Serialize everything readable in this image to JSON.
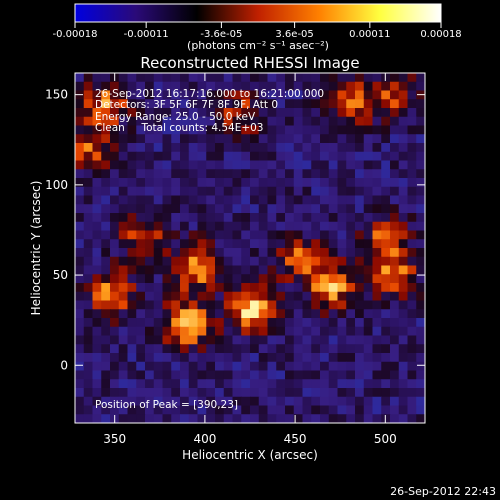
{
  "chart_data": {
    "type": "heatmap",
    "title": "Reconstructed RHESSI Image",
    "xlabel": "Heliocentric X (arcsec)",
    "ylabel": "Heliocentric Y (arcsec)",
    "xlim": [
      328,
      522
    ],
    "ylim": [
      -32,
      162
    ],
    "x_ticks": [
      350,
      400,
      450,
      500
    ],
    "y_ticks": [
      0,
      50,
      100,
      150
    ],
    "colorbar": {
      "range": [
        -0.00018,
        0.00018
      ],
      "tick_values": [
        -0.00018,
        -0.00011,
        -3.6e-05,
        3.6e-05,
        0.00011,
        0.00018
      ],
      "tick_labels": [
        "-0.00018",
        "-0.00011",
        "-3.6e-05",
        "3.6e-05",
        "0.00011",
        "0.00018"
      ],
      "unit_label": "(photons cm⁻² s⁻¹ asec⁻²)",
      "colors": [
        "#0000e0",
        "#2a0a78",
        "#000000",
        "#c02000",
        "#ff8000",
        "#ffff40",
        "#ffffff"
      ]
    },
    "annotations": [
      "26-Sep-2012 16:17:16.000 to 16:21:00.000",
      "Detectors: 3F 5F 6F 7F 8F 9F, Att 0",
      "Energy Range: 25.0 - 50.0 keV",
      "Clean     Total counts: 4.54E+03"
    ],
    "peak_label": "Position of Peak = [390,23]",
    "hot_regions": [
      {
        "x": 390,
        "y": 23,
        "level": 1.0
      },
      {
        "x": 425,
        "y": 32,
        "level": 0.95
      },
      {
        "x": 395,
        "y": 55,
        "level": 0.85
      },
      {
        "x": 348,
        "y": 40,
        "level": 0.75
      },
      {
        "x": 470,
        "y": 45,
        "level": 0.85
      },
      {
        "x": 505,
        "y": 50,
        "level": 0.7
      },
      {
        "x": 500,
        "y": 70,
        "level": 0.6
      },
      {
        "x": 345,
        "y": 145,
        "level": 0.7
      },
      {
        "x": 480,
        "y": 145,
        "level": 0.65
      },
      {
        "x": 335,
        "y": 120,
        "level": 0.6
      },
      {
        "x": 450,
        "y": 60,
        "level": 0.6
      },
      {
        "x": 365,
        "y": 72,
        "level": 0.55
      },
      {
        "x": 420,
        "y": 140,
        "level": 0.5
      },
      {
        "x": 505,
        "y": 150,
        "level": 0.55
      }
    ]
  },
  "footer_timestamp": "26-Sep-2012 22:43"
}
